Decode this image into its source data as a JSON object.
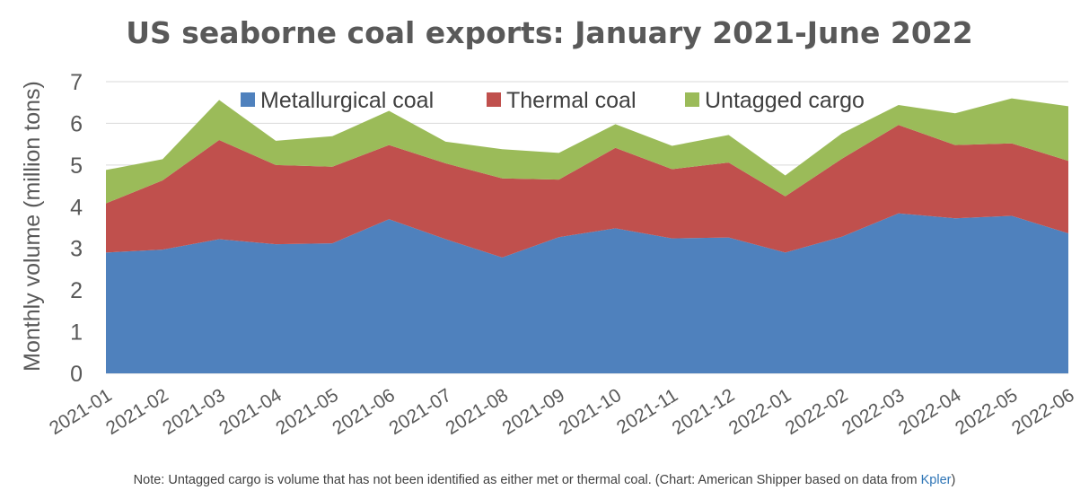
{
  "note": {
    "text": "Note: Untagged cargo is volume that has not been identified as either met or thermal coal. (Chart: American Shipper based on data from ",
    "link_text": "Kpler",
    "suffix": ")"
  },
  "chart_data": {
    "type": "area",
    "stacked": true,
    "title": "US seaborne coal exports: January 2021-June 2022",
    "xlabel": "",
    "ylabel": "Monthly volume (million tons)",
    "ylim": [
      0,
      7
    ],
    "yticks": [
      0,
      1,
      2,
      3,
      4,
      5,
      6,
      7
    ],
    "grid": true,
    "legend_position": "top-center",
    "categories": [
      "2021-01",
      "2021-02",
      "2021-03",
      "2021-04",
      "2021-05",
      "2021-06",
      "2021-07",
      "2021-08",
      "2021-09",
      "2021-10",
      "2021-11",
      "2021-12",
      "2022-01",
      "2022-02",
      "2022-03",
      "2022-04",
      "2022-05",
      "2022-06"
    ],
    "series": [
      {
        "name": "Metallurgical coal",
        "color": "#4f81bd",
        "values": [
          2.9,
          2.97,
          3.22,
          3.1,
          3.12,
          3.7,
          3.22,
          2.78,
          3.27,
          3.48,
          3.24,
          3.26,
          2.9,
          3.28,
          3.84,
          3.72,
          3.78,
          3.36
        ]
      },
      {
        "name": "Thermal coal",
        "color": "#c0504d",
        "values": [
          1.18,
          1.66,
          2.38,
          1.9,
          1.84,
          1.78,
          1.82,
          1.9,
          1.38,
          1.93,
          1.66,
          1.8,
          1.35,
          1.87,
          2.12,
          1.76,
          1.74,
          1.74
        ]
      },
      {
        "name": "Untagged cargo",
        "color": "#9bbb59",
        "values": [
          0.8,
          0.51,
          0.96,
          0.58,
          0.73,
          0.82,
          0.52,
          0.7,
          0.64,
          0.57,
          0.56,
          0.66,
          0.5,
          0.61,
          0.48,
          0.76,
          1.08,
          1.31
        ]
      }
    ]
  }
}
